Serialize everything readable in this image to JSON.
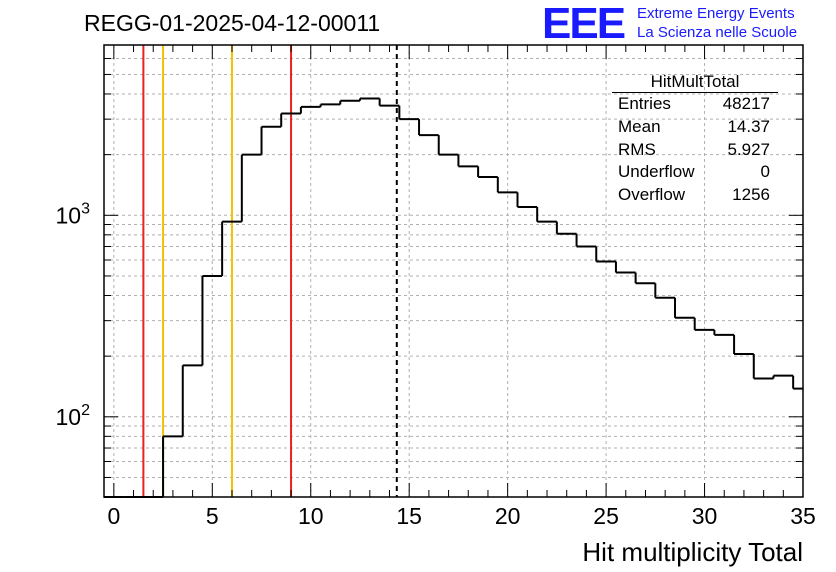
{
  "header": {
    "title": "REGG-01-2025-04-12-00011",
    "logo": "EEE",
    "logo_line1": "Extreme Energy Events",
    "logo_line2": "La Scienza nelle Scuole"
  },
  "stats": {
    "name": "HitMultTotal",
    "rows": [
      {
        "label": "Entries",
        "value": "48217"
      },
      {
        "label": "Mean",
        "value": "14.37"
      },
      {
        "label": "RMS",
        "value": "5.927"
      },
      {
        "label": "Underflow",
        "value": "0"
      },
      {
        "label": "Overflow",
        "value": "1256"
      }
    ]
  },
  "chart_data": {
    "type": "histogram",
    "title": "REGG-01-2025-04-12-00011",
    "xlabel": "Hit multiplicity Total",
    "ylabel": "",
    "xlim": [
      -0.5,
      35
    ],
    "ylim": [
      40,
      7000
    ],
    "yscale": "log",
    "grid": true,
    "x_ticks": [
      0,
      5,
      10,
      15,
      20,
      25,
      30,
      35
    ],
    "y_ticks": [
      {
        "value": 100,
        "base": "10",
        "exp": "2"
      },
      {
        "value": 1000,
        "base": "10",
        "exp": "3"
      }
    ],
    "bin_edges": [
      -0.5,
      0.5,
      1.5,
      2.5,
      3.5,
      4.5,
      5.5,
      6.5,
      7.5,
      8.5,
      9.5,
      10.5,
      11.5,
      12.5,
      13.5,
      14.5,
      15.5,
      16.5,
      17.5,
      18.5,
      19.5,
      20.5,
      21.5,
      22.5,
      23.5,
      24.5,
      25.5,
      26.5,
      27.5,
      28.5,
      29.5,
      30.5,
      31.5,
      32.5,
      33.5,
      34.5,
      35.5
    ],
    "values": [
      0,
      0,
      0,
      80,
      180,
      500,
      930,
      2000,
      2750,
      3200,
      3450,
      3550,
      3700,
      3800,
      3500,
      3000,
      2500,
      2000,
      1750,
      1550,
      1300,
      1100,
      930,
      810,
      700,
      590,
      520,
      460,
      390,
      310,
      270,
      255,
      205,
      155,
      160,
      138
    ],
    "color": "#000000",
    "vertical_lines": [
      {
        "x": 1.5,
        "color": "#e8221e",
        "style": "solid"
      },
      {
        "x": 2.5,
        "color": "#f2c200",
        "style": "solid"
      },
      {
        "x": 6.0,
        "color": "#f2c200",
        "style": "solid"
      },
      {
        "x": 9.0,
        "color": "#e8221e",
        "style": "solid"
      },
      {
        "x": 14.37,
        "color": "#000000",
        "style": "dashed"
      }
    ]
  }
}
